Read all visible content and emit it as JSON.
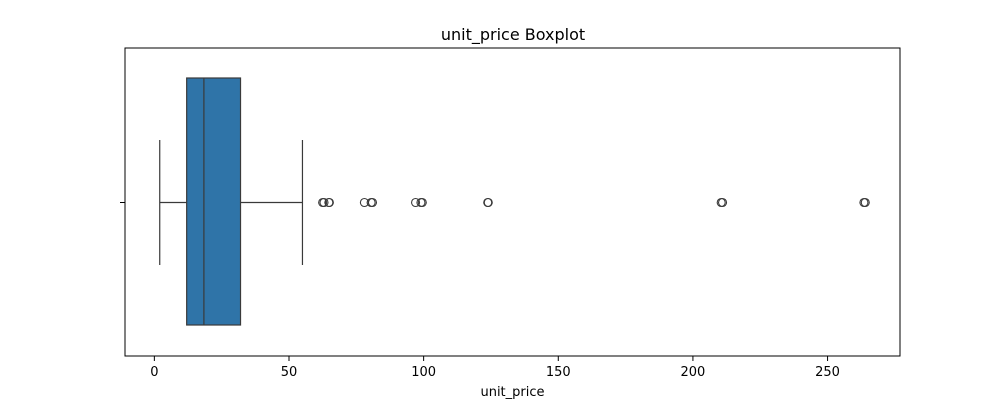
{
  "chart_data": {
    "type": "boxplot",
    "orientation": "horizontal",
    "title": "unit_price Boxplot",
    "xlabel": "unit_price",
    "ylabel": "",
    "xlim": [
      -10.9,
      276.9
    ],
    "xticks": [
      0,
      50,
      100,
      150,
      200,
      250
    ],
    "grid": false,
    "legend": "none",
    "box": {
      "whisker_low": 2,
      "q1": 12,
      "median": 18.4,
      "q3": 32,
      "whisker_high": 55,
      "fill_color": "#2f74a8",
      "line_color": "#3a3a3a"
    },
    "outliers": [
      62.5,
      63,
      64.8,
      65,
      78,
      80.5,
      81,
      97,
      99,
      99.5,
      123.8,
      124,
      210.5,
      211,
      263.5,
      264
    ]
  }
}
